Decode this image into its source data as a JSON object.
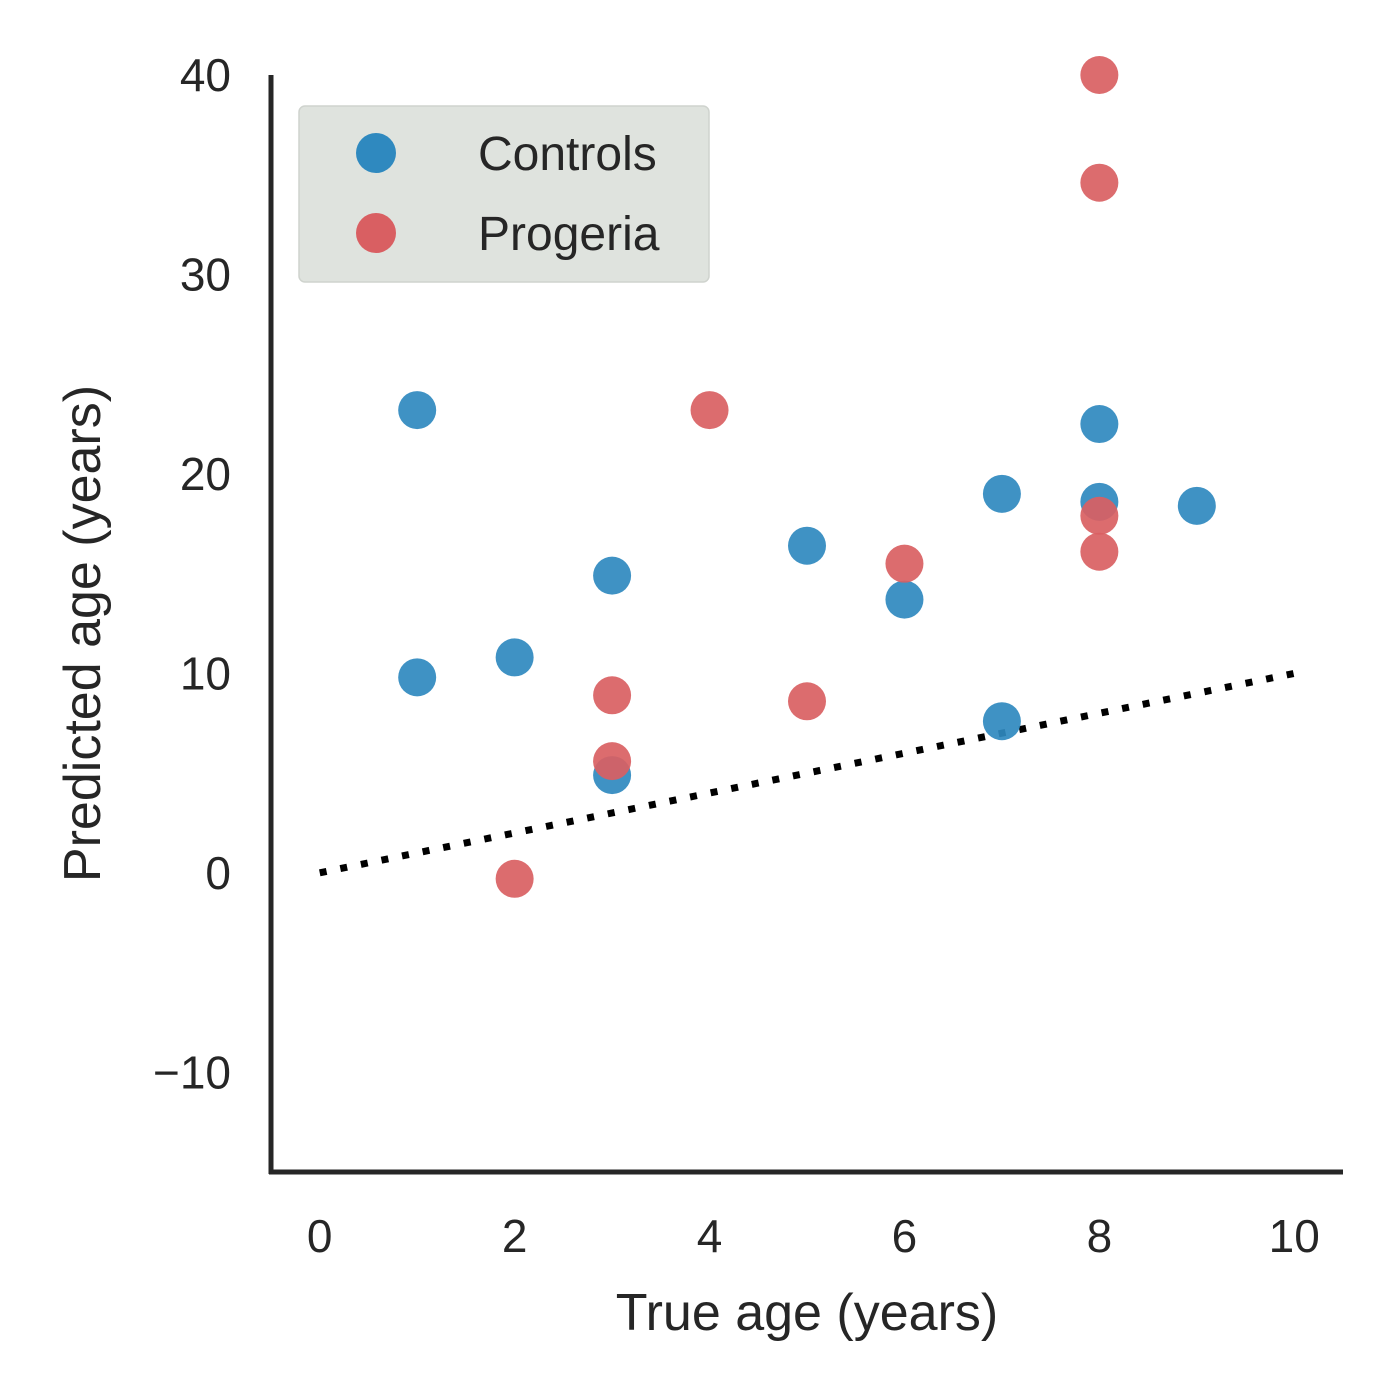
{
  "chart_data": {
    "type": "scatter",
    "title": "",
    "xlabel": "True age (years)",
    "ylabel": "Predicted age (years)",
    "xlim": [
      -0.5,
      10.5
    ],
    "ylim": [
      -15,
      40
    ],
    "xticks": [
      0,
      2,
      4,
      6,
      8,
      10
    ],
    "xtick_labels": [
      "0",
      "2",
      "4",
      "6",
      "8",
      "10"
    ],
    "yticks": [
      -10,
      0,
      10,
      20,
      30,
      40
    ],
    "ytick_labels": [
      "−10",
      "0",
      "10",
      "20",
      "30",
      "40"
    ],
    "grid": false,
    "legend_position": "top-left",
    "reference_line": {
      "style": "dotted",
      "color": "#000000",
      "x": [
        0,
        10
      ],
      "y": [
        0,
        10
      ]
    },
    "series": [
      {
        "name": "Controls",
        "color": "#2f89bf",
        "points": [
          {
            "x": 1,
            "y": 23.2
          },
          {
            "x": 1,
            "y": 9.8
          },
          {
            "x": 2,
            "y": 10.8
          },
          {
            "x": 3,
            "y": 14.9
          },
          {
            "x": 3,
            "y": 4.9
          },
          {
            "x": 5,
            "y": 16.4
          },
          {
            "x": 6,
            "y": 13.7
          },
          {
            "x": 7,
            "y": 19.0
          },
          {
            "x": 7,
            "y": 7.6
          },
          {
            "x": 8,
            "y": 22.5
          },
          {
            "x": 8,
            "y": 18.6
          },
          {
            "x": 9,
            "y": 18.4
          }
        ]
      },
      {
        "name": "Progeria",
        "color": "#d95f62",
        "points": [
          {
            "x": 2,
            "y": -0.3
          },
          {
            "x": 3,
            "y": 8.9
          },
          {
            "x": 3,
            "y": 5.6
          },
          {
            "x": 4,
            "y": 23.2
          },
          {
            "x": 5,
            "y": 8.6
          },
          {
            "x": 6,
            "y": 15.5
          },
          {
            "x": 8,
            "y": 40.0
          },
          {
            "x": 8,
            "y": 34.6
          },
          {
            "x": 8,
            "y": 17.9
          },
          {
            "x": 8,
            "y": 16.1
          }
        ]
      }
    ]
  }
}
